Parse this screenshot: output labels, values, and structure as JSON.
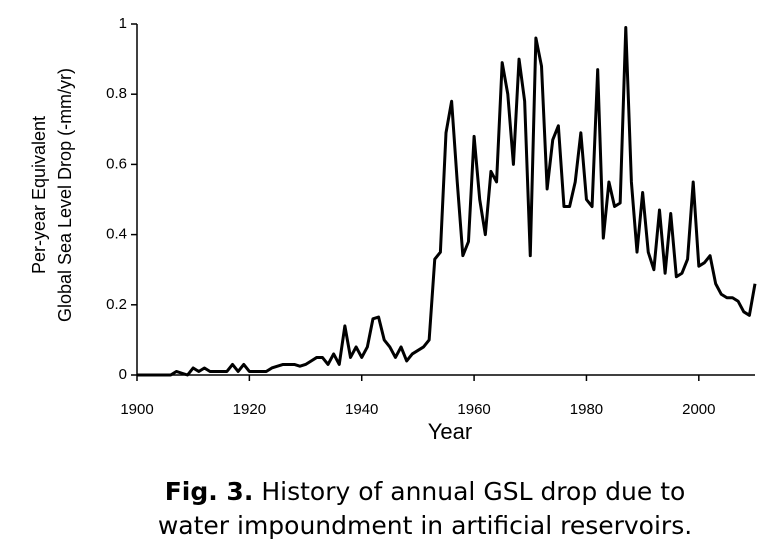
{
  "chart_data": {
    "type": "line",
    "y_label_lines": [
      "Per-year Equivalent",
      "Global Sea Level Drop  (-mm/yr)"
    ],
    "x_label": "Year",
    "caption_label": "Fig. 3.",
    "caption_lines": [
      "History of annual GSL drop due to",
      "water impoundment in artificial reservoirs."
    ],
    "color": "#000000",
    "x": [
      1900,
      1901,
      1902,
      1903,
      1904,
      1905,
      1906,
      1907,
      1908,
      1909,
      1910,
      1911,
      1912,
      1913,
      1914,
      1915,
      1916,
      1917,
      1918,
      1919,
      1920,
      1921,
      1922,
      1923,
      1924,
      1925,
      1926,
      1927,
      1928,
      1929,
      1930,
      1931,
      1932,
      1933,
      1934,
      1935,
      1936,
      1937,
      1938,
      1939,
      1940,
      1941,
      1942,
      1943,
      1944,
      1945,
      1946,
      1947,
      1948,
      1949,
      1950,
      1951,
      1952,
      1953,
      1954,
      1955,
      1956,
      1957,
      1958,
      1959,
      1960,
      1961,
      1962,
      1963,
      1964,
      1965,
      1966,
      1967,
      1968,
      1969,
      1970,
      1971,
      1972,
      1973,
      1974,
      1975,
      1976,
      1977,
      1978,
      1979,
      1980,
      1981,
      1982,
      1983,
      1984,
      1985,
      1986,
      1987,
      1988,
      1989,
      1990,
      1991,
      1992,
      1993,
      1994,
      1995,
      1996,
      1997,
      1998,
      1999,
      2000,
      2001,
      2002,
      2003,
      2004,
      2005,
      2006,
      2007,
      2008,
      2009,
      2010
    ],
    "values": [
      0,
      0,
      0,
      0,
      0,
      0,
      0,
      0.01,
      0.005,
      0,
      0.02,
      0.01,
      0.02,
      0.01,
      0.01,
      0.01,
      0.01,
      0.03,
      0.01,
      0.03,
      0.01,
      0.01,
      0.01,
      0.01,
      0.02,
      0.025,
      0.03,
      0.03,
      0.03,
      0.025,
      0.03,
      0.04,
      0.05,
      0.05,
      0.03,
      0.06,
      0.03,
      0.14,
      0.05,
      0.08,
      0.05,
      0.08,
      0.16,
      0.165,
      0.1,
      0.08,
      0.05,
      0.08,
      0.04,
      0.06,
      0.07,
      0.08,
      0.1,
      0.33,
      0.35,
      0.69,
      0.78,
      0.55,
      0.34,
      0.38,
      0.68,
      0.5,
      0.4,
      0.58,
      0.55,
      0.89,
      0.8,
      0.6,
      0.9,
      0.78,
      0.34,
      0.96,
      0.88,
      0.53,
      0.67,
      0.71,
      0.48,
      0.48,
      0.55,
      0.69,
      0.5,
      0.48,
      0.87,
      0.39,
      0.55,
      0.48,
      0.49,
      0.99,
      0.55,
      0.35,
      0.52,
      0.35,
      0.3,
      0.47,
      0.29,
      0.46,
      0.28,
      0.29,
      0.33,
      0.55,
      0.31,
      0.32,
      0.34,
      0.26,
      0.23,
      0.22,
      0.22,
      0.21,
      0.18,
      0.17,
      0.26
    ],
    "xlim": [
      1900,
      2010
    ],
    "xticks": [
      1900,
      1920,
      1940,
      1960,
      1980,
      2000
    ],
    "ylim": [
      0,
      1
    ],
    "yticks": [
      0,
      0.2,
      0.4,
      0.6,
      0.8,
      1
    ]
  }
}
